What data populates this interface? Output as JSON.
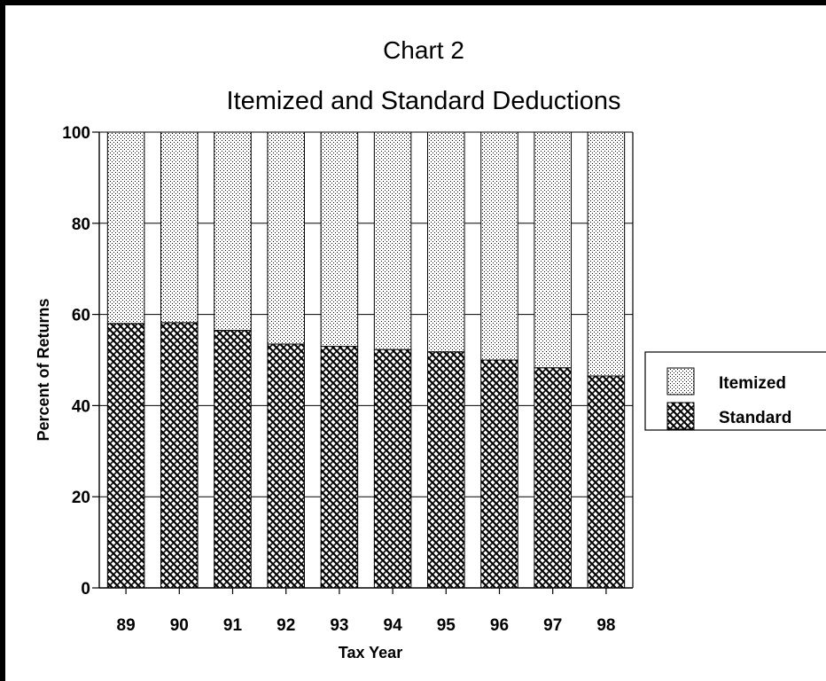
{
  "chart_data": {
    "type": "bar",
    "stacked": true,
    "title": "Chart 2",
    "subtitle": "Itemized and Standard Deductions",
    "xlabel": "Tax Year",
    "ylabel": "Percent of Returns",
    "ylim": [
      0,
      100
    ],
    "yticks": [
      "0",
      "20",
      "40",
      "60",
      "80",
      "100"
    ],
    "categories": [
      "89",
      "90",
      "91",
      "92",
      "93",
      "94",
      "95",
      "96",
      "97",
      "98"
    ],
    "series": [
      {
        "name": "Standard",
        "values": [
          58,
          58.2,
          56.5,
          53.5,
          53,
          52.3,
          51.8,
          50,
          48.3,
          46.5
        ]
      },
      {
        "name": "Itemized",
        "values": [
          42,
          41.8,
          43.5,
          46.5,
          47,
          47.7,
          48.2,
          50,
          51.7,
          53.5
        ]
      }
    ],
    "grid": "horizontal",
    "legend_position": "right"
  }
}
